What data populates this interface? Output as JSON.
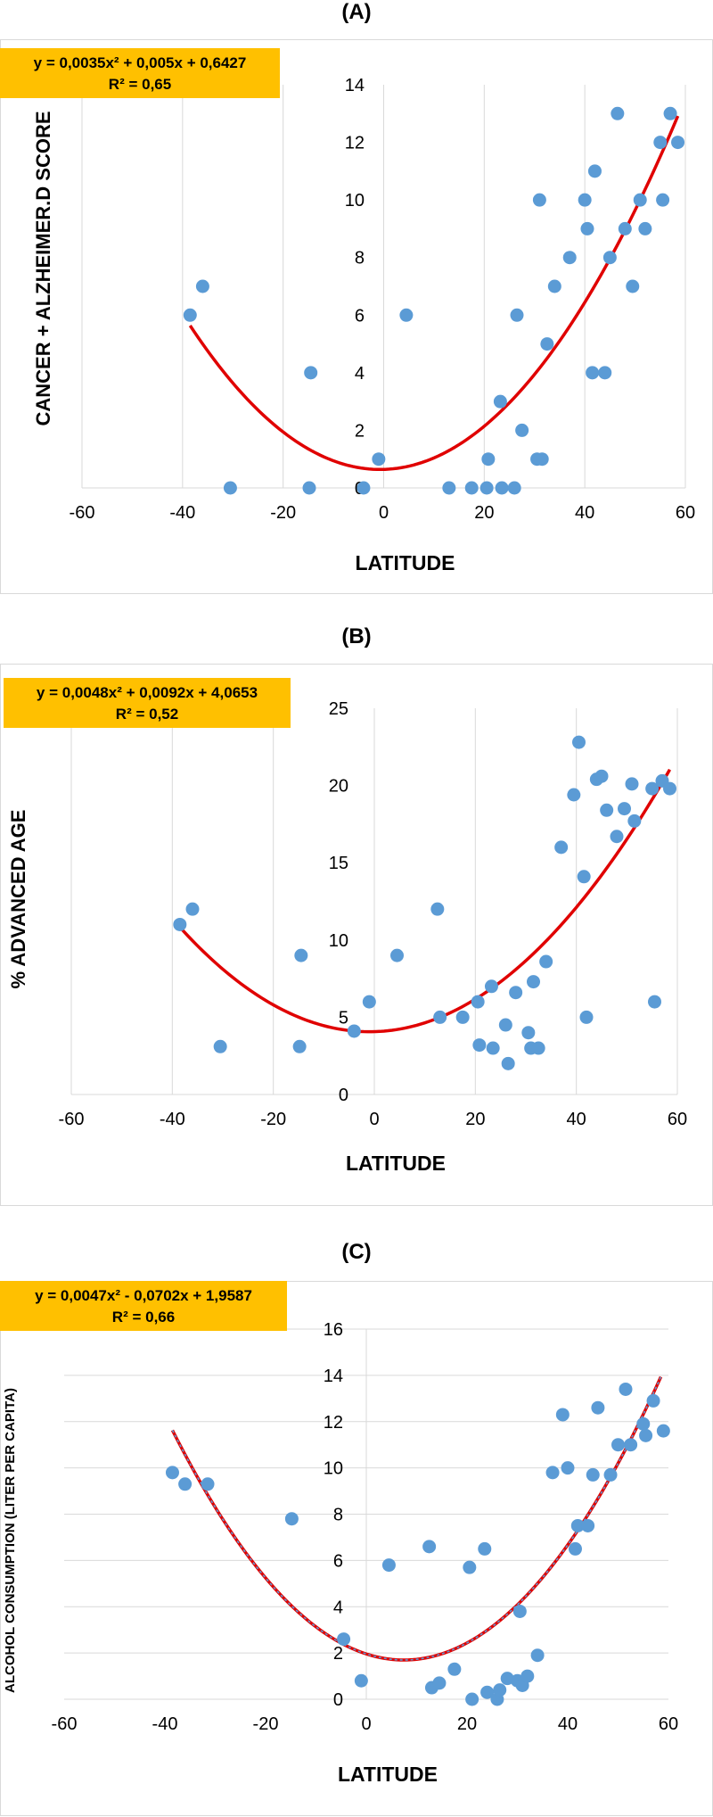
{
  "figure": {
    "panels": [
      {
        "label": "(A)"
      },
      {
        "label": "(B)"
      },
      {
        "label": "(C)"
      }
    ]
  },
  "colors": {
    "point": "#5b9bd5",
    "trend": "#e00000",
    "trend_dash": "#5b9bd5",
    "grid": "#d9d9d9",
    "equation_box": "#ffc000"
  },
  "chart_data": [
    {
      "type": "scatter",
      "title": "(A)",
      "xlabel": "LATITUDE",
      "ylabel": "CANCER + ALZHEIMER.D SCORE",
      "xlim": [
        -60,
        60
      ],
      "ylim": [
        0,
        14
      ],
      "xticks": [
        -60,
        -40,
        -20,
        0,
        20,
        40,
        60
      ],
      "yticks": [
        0,
        2,
        4,
        6,
        8,
        10,
        12,
        14
      ],
      "grid": "vertical",
      "equation": "y = 0,0035x² + 0,005x + 0,6427",
      "r_squared": "R² = 0,65",
      "trendline": {
        "type": "polynomial",
        "order": 2,
        "coefficients": [
          0.0035,
          0.005,
          0.6427
        ],
        "style": "solid",
        "x_range": [
          -38.5,
          58.5
        ]
      },
      "points": [
        [
          -38.5,
          6
        ],
        [
          -36,
          7
        ],
        [
          -30.5,
          0
        ],
        [
          -14.8,
          0
        ],
        [
          -14.5,
          4
        ],
        [
          -4,
          0
        ],
        [
          -1,
          1
        ],
        [
          4.5,
          6
        ],
        [
          13,
          0
        ],
        [
          17.5,
          0
        ],
        [
          20.5,
          0
        ],
        [
          20.8,
          1
        ],
        [
          23.2,
          3
        ],
        [
          23.5,
          0
        ],
        [
          26,
          0
        ],
        [
          26.5,
          6
        ],
        [
          27.5,
          2
        ],
        [
          30.5,
          1
        ],
        [
          31,
          10
        ],
        [
          31.5,
          1
        ],
        [
          32.5,
          5
        ],
        [
          34,
          7
        ],
        [
          37,
          8
        ],
        [
          40,
          10
        ],
        [
          40.5,
          9
        ],
        [
          41.5,
          4
        ],
        [
          42,
          11
        ],
        [
          44,
          4
        ],
        [
          45,
          8
        ],
        [
          46.5,
          13
        ],
        [
          48,
          9
        ],
        [
          49.5,
          7
        ],
        [
          51,
          10
        ],
        [
          52,
          9
        ],
        [
          55,
          12
        ],
        [
          55.5,
          10
        ],
        [
          57,
          13
        ],
        [
          58.5,
          12
        ]
      ]
    },
    {
      "type": "scatter",
      "title": "(B)",
      "xlabel": "LATITUDE",
      "ylabel": "% ADVANCED AGE",
      "xlim": [
        -60,
        60
      ],
      "ylim": [
        0,
        25
      ],
      "xticks": [
        -60,
        -40,
        -20,
        0,
        20,
        40,
        60
      ],
      "yticks": [
        0,
        5,
        10,
        15,
        20,
        25
      ],
      "grid": "vertical",
      "equation": "y = 0,0048x² + 0,0092x + 4,0653",
      "r_squared": "R² = 0,52",
      "trendline": {
        "type": "polynomial",
        "order": 2,
        "coefficients": [
          0.0048,
          0.0092,
          4.0653
        ],
        "style": "solid",
        "x_range": [
          -38.5,
          58.5
        ]
      },
      "points": [
        [
          -38.5,
          11
        ],
        [
          -36,
          12
        ],
        [
          -30.5,
          3.1
        ],
        [
          -14.8,
          3.1
        ],
        [
          -14.5,
          9
        ],
        [
          -4,
          4.1
        ],
        [
          -1,
          6
        ],
        [
          4.5,
          9
        ],
        [
          12.5,
          12
        ],
        [
          13,
          5
        ],
        [
          17.5,
          5
        ],
        [
          20.5,
          6
        ],
        [
          20.8,
          3.2
        ],
        [
          23.2,
          7
        ],
        [
          23.5,
          3
        ],
        [
          26,
          4.5
        ],
        [
          26.5,
          2
        ],
        [
          28,
          6.6
        ],
        [
          30.5,
          4
        ],
        [
          31,
          3
        ],
        [
          31.5,
          7.3
        ],
        [
          32.5,
          3
        ],
        [
          34,
          8.6
        ],
        [
          37,
          16
        ],
        [
          39.5,
          19.4
        ],
        [
          40.5,
          22.8
        ],
        [
          41.5,
          14.1
        ],
        [
          42,
          5
        ],
        [
          44,
          20.4
        ],
        [
          45,
          20.6
        ],
        [
          46,
          18.4
        ],
        [
          48,
          16.7
        ],
        [
          49.5,
          18.5
        ],
        [
          51,
          20.1
        ],
        [
          51.5,
          17.7
        ],
        [
          55,
          19.8
        ],
        [
          55.5,
          6
        ],
        [
          57,
          20.3
        ],
        [
          58.5,
          19.8
        ]
      ]
    },
    {
      "type": "scatter",
      "title": "(C)",
      "xlabel": "LATITUDE",
      "ylabel": "ALCOHOL CONSUMPTION (LITER  PER CAPITA)",
      "xlim": [
        -60,
        60
      ],
      "ylim": [
        0,
        16
      ],
      "xticks": [
        -60,
        -40,
        -20,
        0,
        20,
        40,
        60
      ],
      "yticks": [
        0,
        2,
        4,
        6,
        8,
        10,
        12,
        14,
        16
      ],
      "grid": "horizontal",
      "equation": "y = 0,0047x² - 0,0702x + 1,9587",
      "r_squared": "R² = 0,66",
      "trendline": {
        "type": "polynomial",
        "order": 2,
        "coefficients": [
          0.0047,
          -0.0702,
          1.9587
        ],
        "style": "dashed",
        "x_range": [
          -38.5,
          58.5
        ]
      },
      "points": [
        [
          -38.5,
          9.8
        ],
        [
          -36,
          9.3
        ],
        [
          -31.5,
          9.3
        ],
        [
          -14.8,
          7.8
        ],
        [
          -4.5,
          2.6
        ],
        [
          -1,
          0.8
        ],
        [
          4.5,
          5.8
        ],
        [
          12.5,
          6.6
        ],
        [
          13,
          0.5
        ],
        [
          14.5,
          0.7
        ],
        [
          17.5,
          1.3
        ],
        [
          20.5,
          5.7
        ],
        [
          21,
          0
        ],
        [
          23.5,
          6.5
        ],
        [
          24,
          0.3
        ],
        [
          26,
          0
        ],
        [
          26.5,
          0.4
        ],
        [
          28,
          0.9
        ],
        [
          30,
          0.8
        ],
        [
          30.5,
          3.8
        ],
        [
          31,
          0.6
        ],
        [
          32,
          1
        ],
        [
          34,
          1.9
        ],
        [
          37,
          9.8
        ],
        [
          39,
          12.3
        ],
        [
          40,
          10
        ],
        [
          41.5,
          6.5
        ],
        [
          42,
          7.5
        ],
        [
          44,
          7.5
        ],
        [
          45,
          9.7
        ],
        [
          46,
          12.6
        ],
        [
          48.5,
          9.7
        ],
        [
          50,
          11
        ],
        [
          51.5,
          13.4
        ],
        [
          52.5,
          11
        ],
        [
          55,
          11.9
        ],
        [
          55.5,
          11.4
        ],
        [
          57,
          12.9
        ],
        [
          59,
          11.6
        ]
      ]
    }
  ]
}
